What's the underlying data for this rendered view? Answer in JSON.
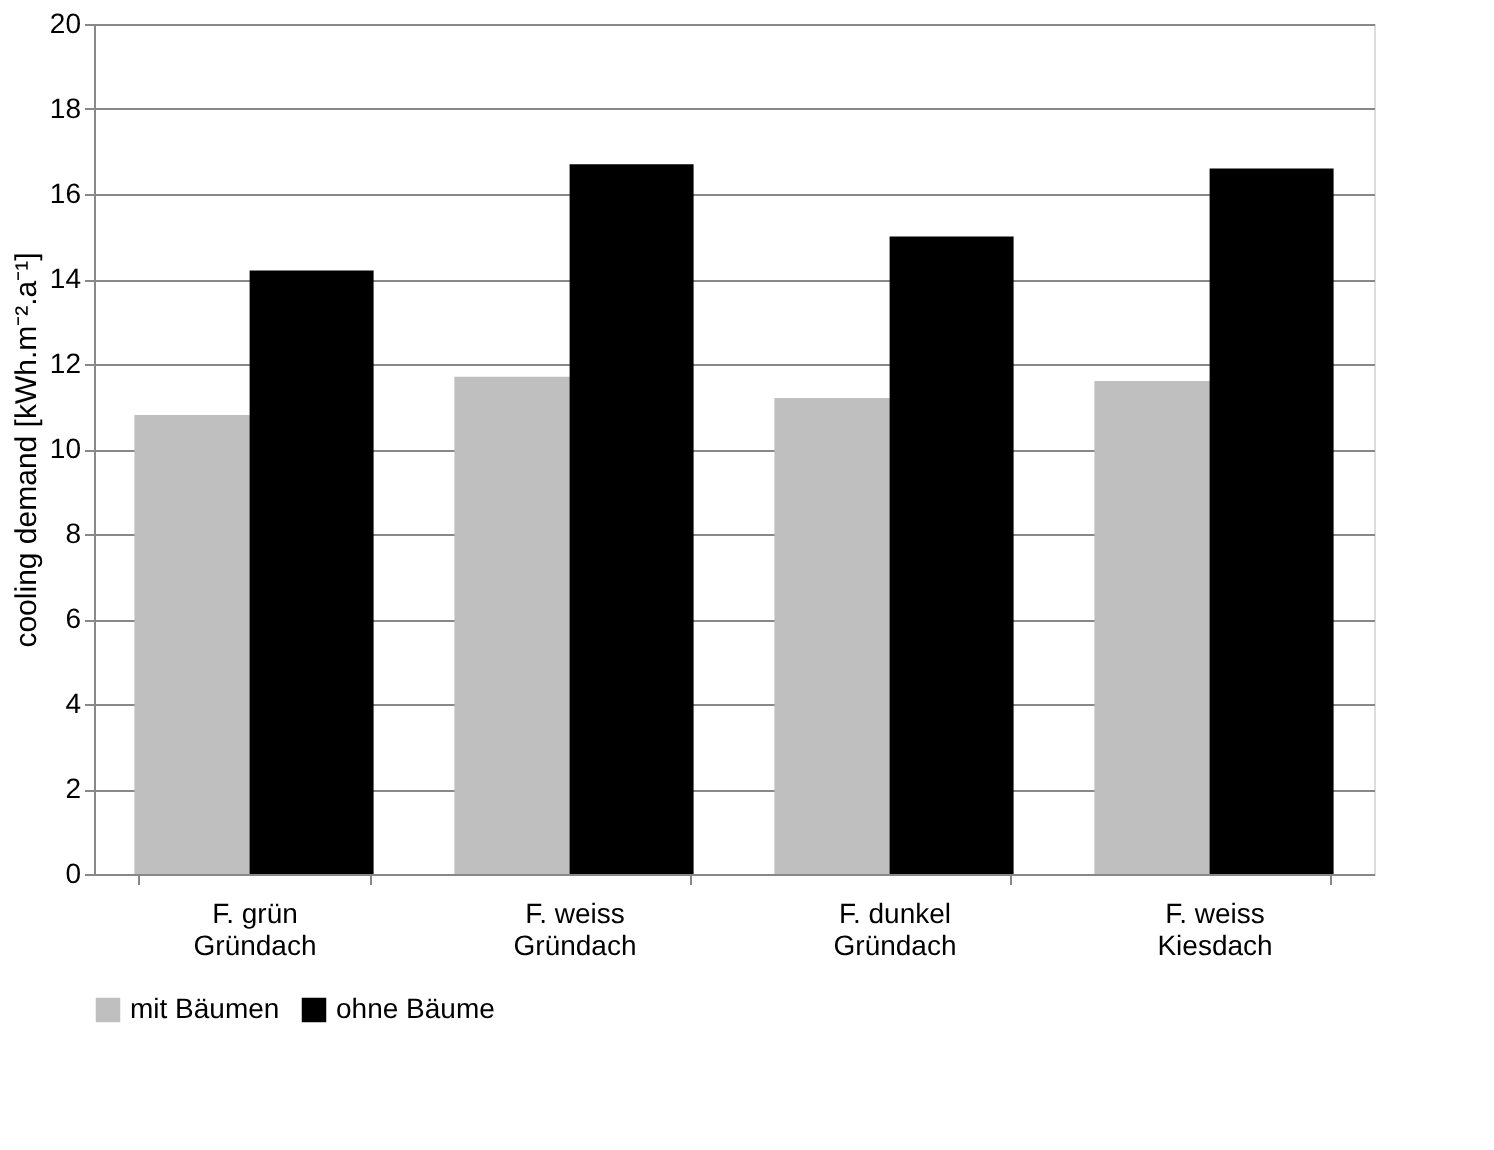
{
  "chart_data": {
    "type": "bar",
    "ylabel": "cooling demand [kWh.m⁻².a⁻¹]",
    "categories": [
      "F. grün\nGründach",
      "F. weiss\nGründach",
      "F. dunkel\nGründach",
      "F. weiss\nKiesdach"
    ],
    "series": [
      {
        "name": "mit Bäumen",
        "color": "#bfbfbf",
        "values": [
          10.8,
          11.7,
          11.2,
          11.6
        ]
      },
      {
        "name": "ohne Bäume",
        "color": "#000000",
        "values": [
          14.2,
          16.7,
          15.0,
          16.6
        ]
      }
    ],
    "ylim": [
      0,
      20
    ],
    "yticks": [
      0,
      2,
      4,
      6,
      8,
      10,
      12,
      14,
      16,
      18,
      20
    ],
    "grid": "y",
    "legend": "bottom"
  }
}
